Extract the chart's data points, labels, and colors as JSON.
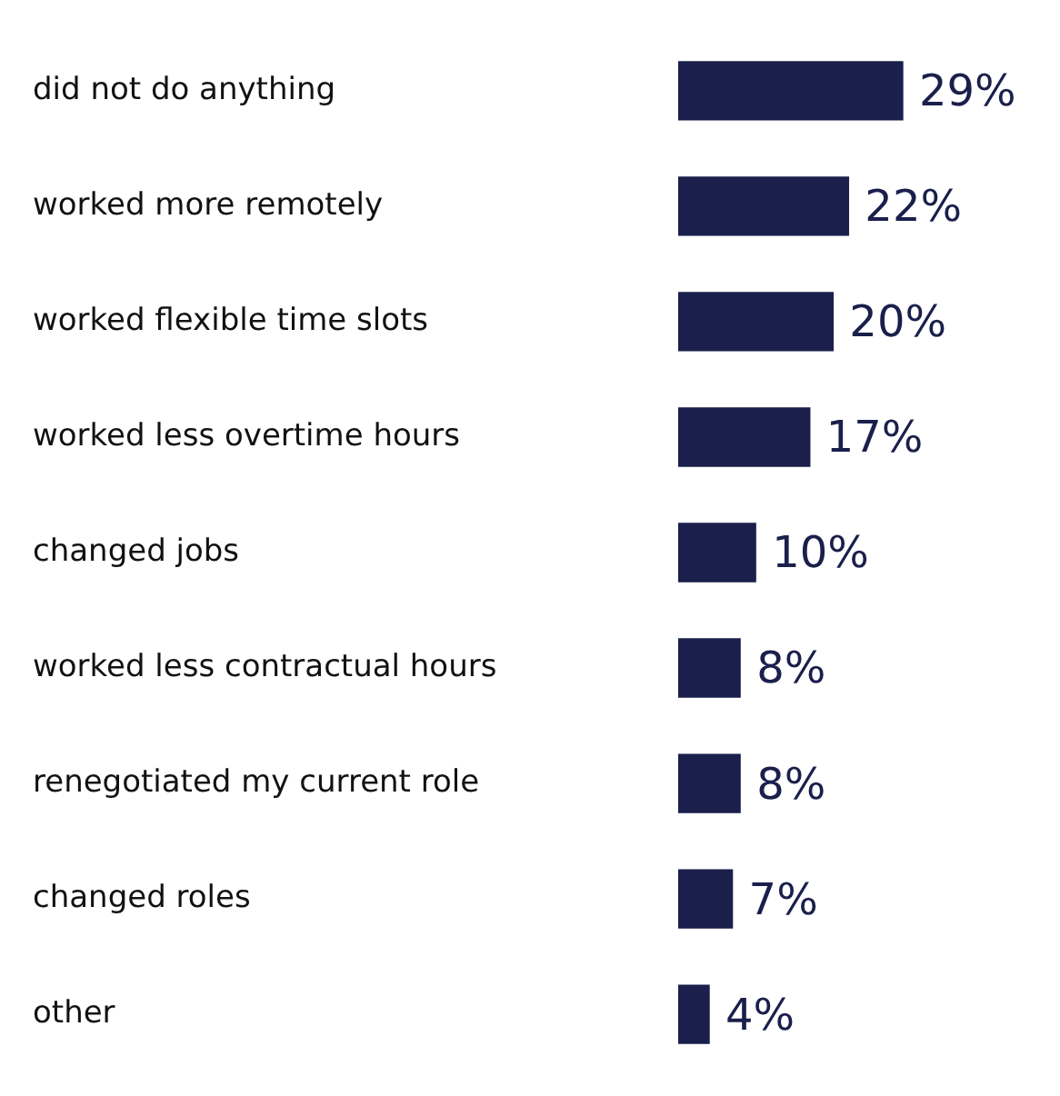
{
  "chart_data": {
    "type": "bar",
    "orientation": "horizontal",
    "categories": [
      "did not do anything",
      "worked more remotely",
      "worked flexible time slots",
      "worked less overtime hours",
      "changed jobs",
      "worked less contractual hours",
      "renegotiated my current role",
      "changed roles",
      "other"
    ],
    "values": [
      29,
      22,
      20,
      17,
      10,
      8,
      8,
      7,
      4
    ],
    "value_labels": [
      "29%",
      "22%",
      "20%",
      "17%",
      "10%",
      "8%",
      "8%",
      "7%",
      "4%"
    ],
    "color": "#1a1f4b",
    "grid": false,
    "legend": false
  }
}
